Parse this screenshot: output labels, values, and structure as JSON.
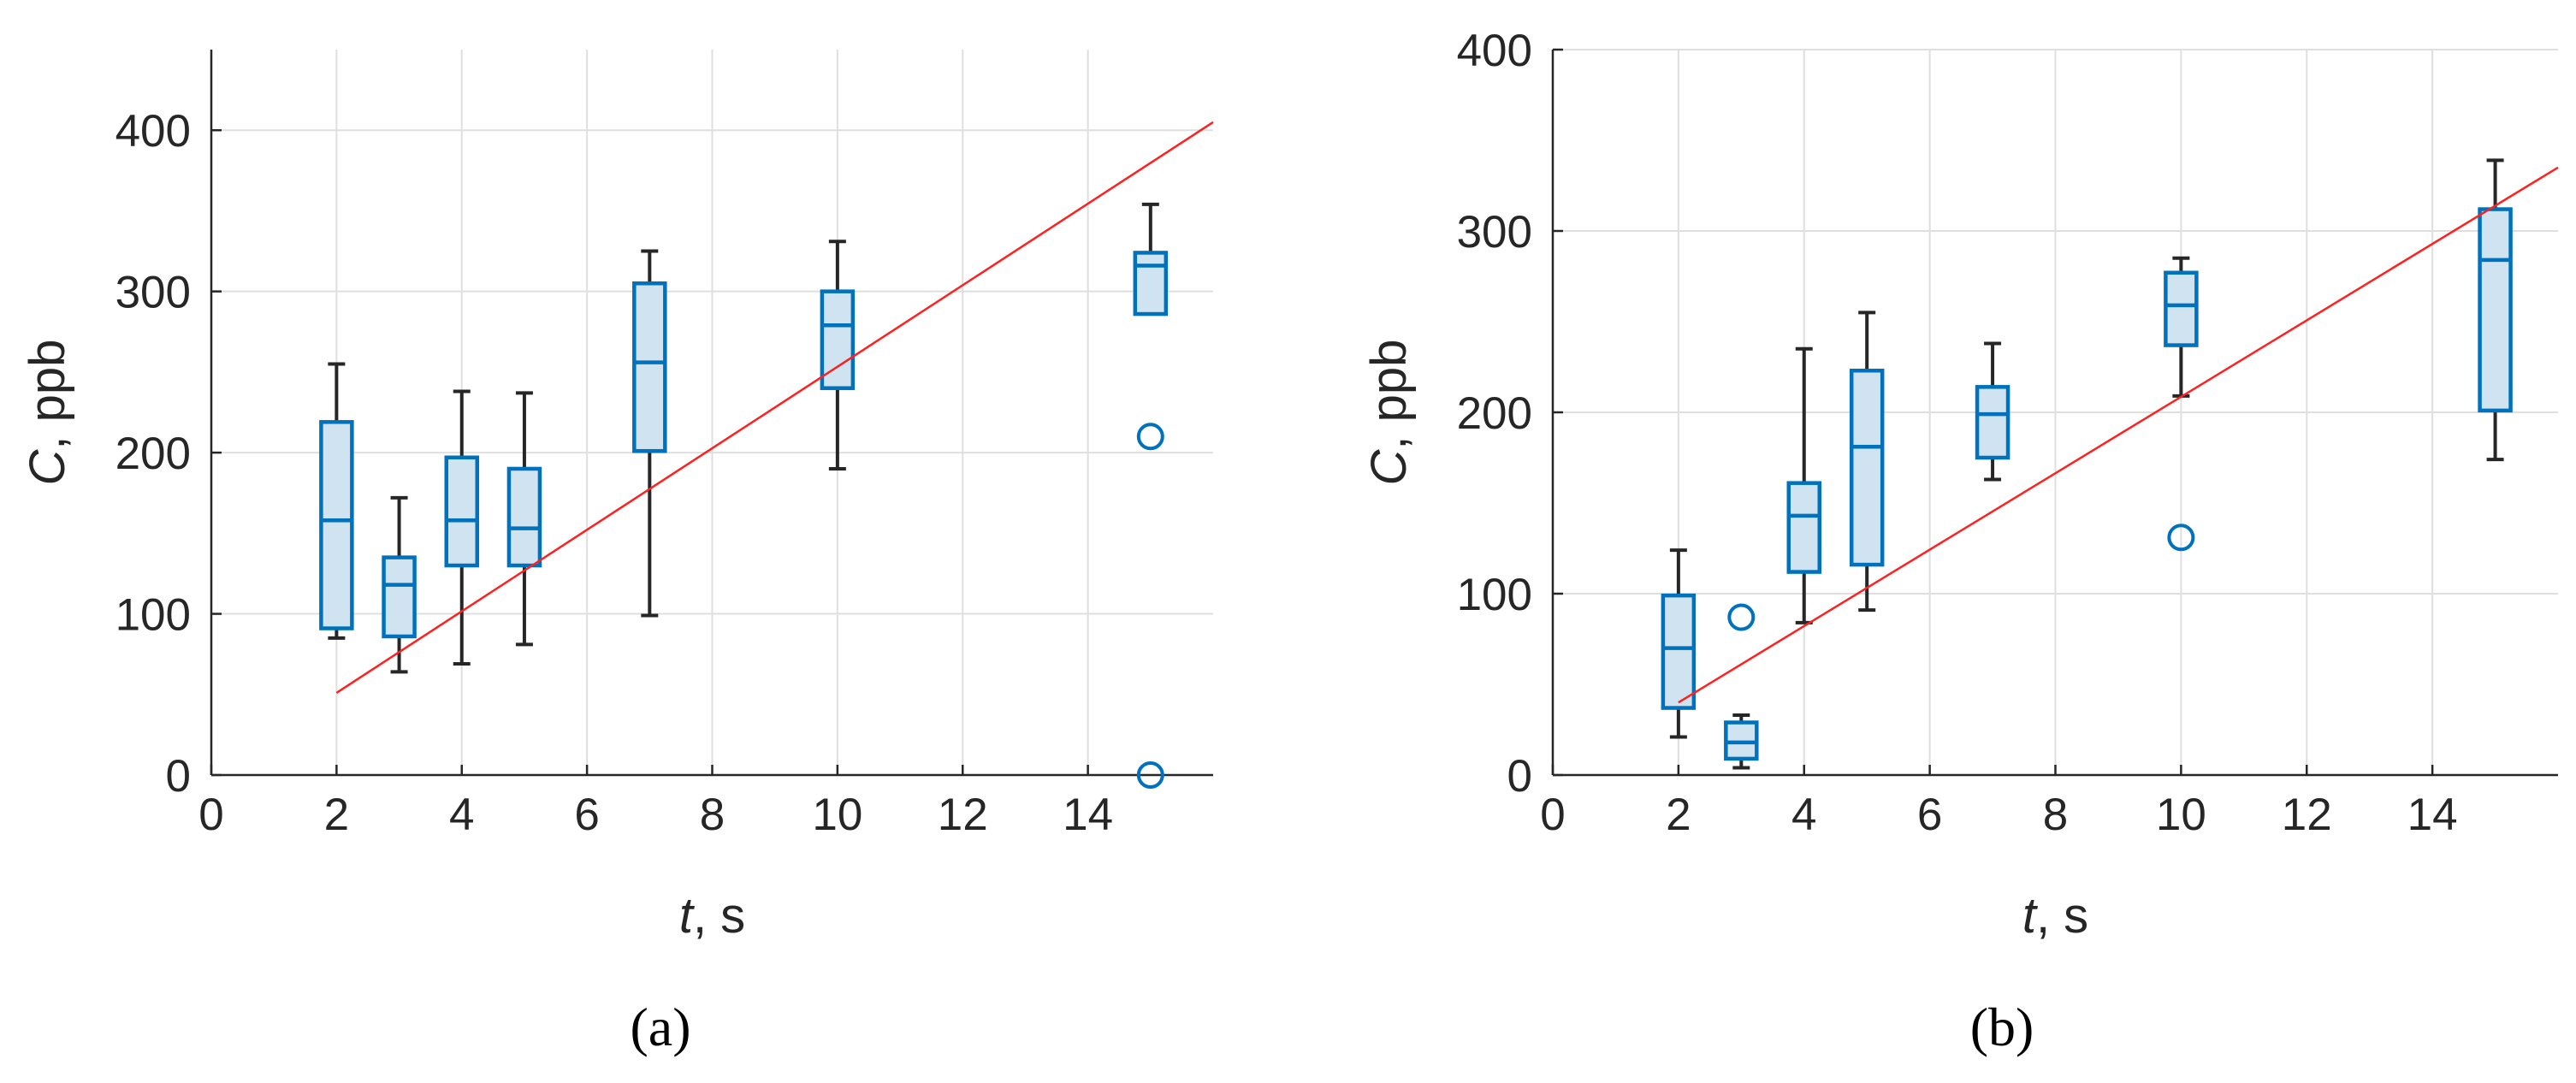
{
  "chart_data": [
    {
      "type": "box",
      "panel_label": "(a)",
      "xlabel": {
        "var": "t",
        "unit": ", s"
      },
      "ylabel": {
        "var": "C",
        "unit": ", ppb"
      },
      "xlim": [
        0,
        16
      ],
      "ylim": [
        0,
        450
      ],
      "xticks": [
        0,
        2,
        4,
        6,
        8,
        10,
        12,
        14
      ],
      "yticks": [
        0,
        100,
        200,
        300,
        400
      ],
      "grid": true,
      "box_color": "#0072bd",
      "box_fill": "#cfe3f1",
      "whisker_color": "#262626",
      "fit_color": "#ff2020",
      "boxes": [
        {
          "x": 2,
          "min": 85,
          "q1": 91,
          "median": 158,
          "q3": 219,
          "max": 255,
          "outliers": []
        },
        {
          "x": 3,
          "min": 64,
          "q1": 86,
          "median": 118,
          "q3": 135,
          "max": 172,
          "outliers": []
        },
        {
          "x": 4,
          "min": 69,
          "q1": 130,
          "median": 158,
          "q3": 197,
          "max": 238,
          "outliers": []
        },
        {
          "x": 5,
          "min": 81,
          "q1": 130,
          "median": 153,
          "q3": 190,
          "max": 237,
          "outliers": []
        },
        {
          "x": 7,
          "min": 99,
          "q1": 201,
          "median": 256,
          "q3": 305,
          "max": 325,
          "outliers": []
        },
        {
          "x": 10,
          "min": 190,
          "q1": 240,
          "median": 279,
          "q3": 300,
          "max": 331,
          "outliers": []
        },
        {
          "x": 15,
          "min": 286,
          "q1": 286,
          "median": 316,
          "q3": 324,
          "max": 354,
          "outliers": [
            210,
            0
          ]
        }
      ],
      "fit_line": {
        "x": [
          2,
          16
        ],
        "y": [
          51,
          405
        ]
      }
    },
    {
      "type": "box",
      "panel_label": "(b)",
      "xlabel": {
        "var": "t",
        "unit": ", s"
      },
      "ylabel": {
        "var": "C",
        "unit": ", ppb"
      },
      "xlim": [
        0,
        16
      ],
      "ylim": [
        0,
        400
      ],
      "xticks": [
        0,
        2,
        4,
        6,
        8,
        10,
        12,
        14
      ],
      "yticks": [
        0,
        100,
        200,
        300,
        400
      ],
      "grid": true,
      "box_color": "#0072bd",
      "box_fill": "#cfe3f1",
      "whisker_color": "#262626",
      "fit_color": "#ff2020",
      "boxes": [
        {
          "x": 2,
          "min": 21,
          "q1": 37,
          "median": 70,
          "q3": 99,
          "max": 124,
          "outliers": []
        },
        {
          "x": 3,
          "min": 4,
          "q1": 9,
          "median": 18,
          "q3": 29,
          "max": 33,
          "outliers": [
            87
          ]
        },
        {
          "x": 4,
          "min": 84,
          "q1": 112,
          "median": 143,
          "q3": 161,
          "max": 235,
          "outliers": []
        },
        {
          "x": 5,
          "min": 91,
          "q1": 116,
          "median": 181,
          "q3": 223,
          "max": 255,
          "outliers": []
        },
        {
          "x": 7,
          "min": 163,
          "q1": 175,
          "median": 199,
          "q3": 214,
          "max": 238,
          "outliers": []
        },
        {
          "x": 10,
          "min": 209,
          "q1": 237,
          "median": 259,
          "q3": 277,
          "max": 285,
          "outliers": [
            131
          ]
        },
        {
          "x": 15,
          "min": 174,
          "q1": 201,
          "median": 284,
          "q3": 312,
          "max": 339,
          "outliers": []
        }
      ],
      "fit_line": {
        "x": [
          2,
          16
        ],
        "y": [
          40,
          335
        ]
      }
    }
  ]
}
